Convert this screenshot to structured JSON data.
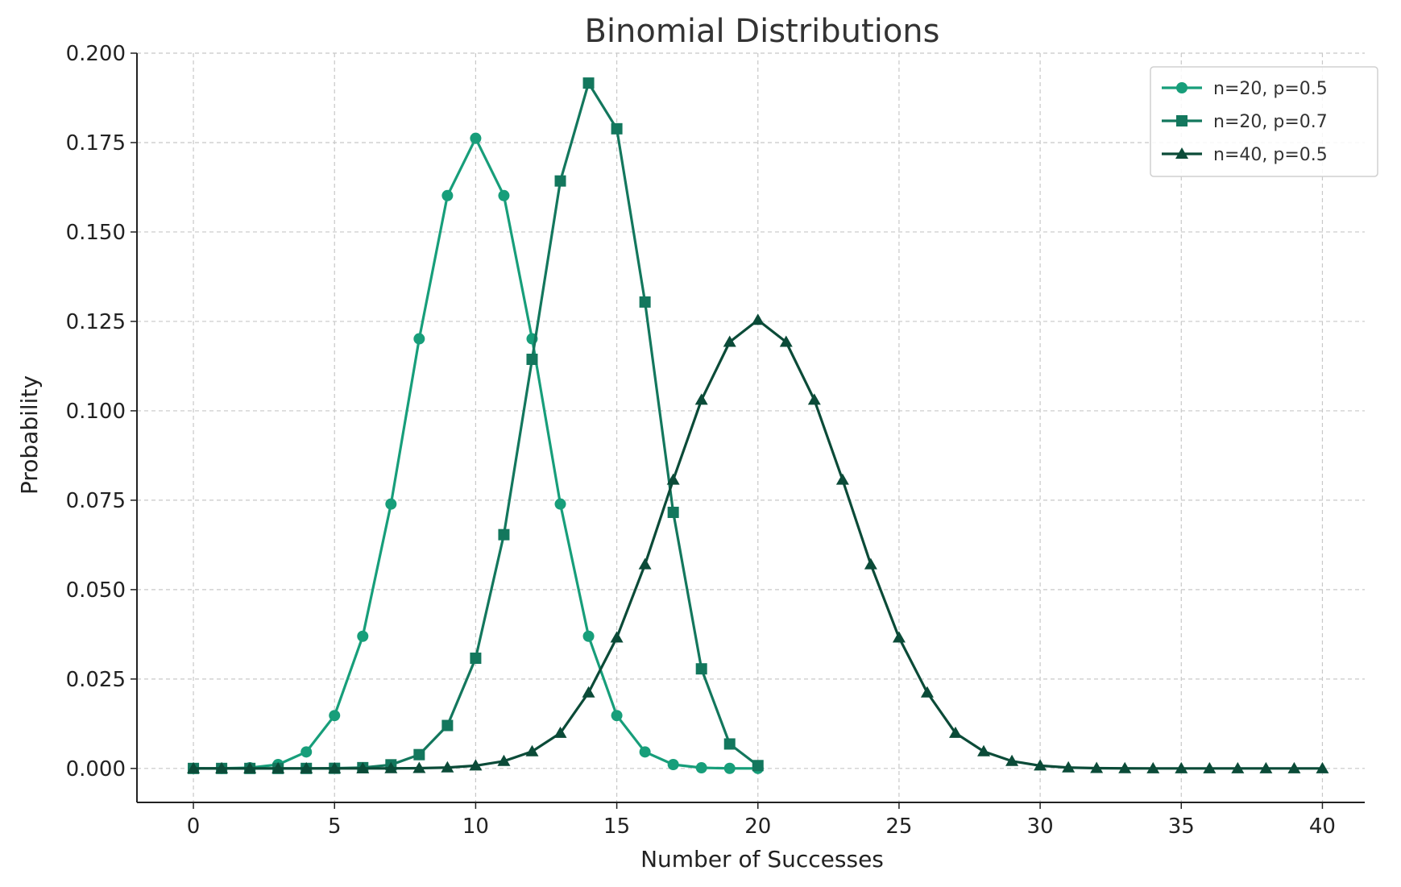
{
  "chart_data": {
    "type": "line",
    "title": "Binomial Distributions",
    "xlabel": "Number of Successes",
    "ylabel": "Probability",
    "xlim": [
      -2,
      41.5
    ],
    "ylim": [
      -0.0095,
      0.2
    ],
    "xticks": [
      0,
      5,
      10,
      15,
      20,
      25,
      30,
      35,
      40
    ],
    "yticks": [
      0.0,
      0.025,
      0.05,
      0.075,
      0.1,
      0.125,
      0.15,
      0.175,
      0.2
    ],
    "ytick_labels": [
      "0.000",
      "0.025",
      "0.050",
      "0.075",
      "0.100",
      "0.125",
      "0.150",
      "0.175",
      "0.200"
    ],
    "grid": true,
    "legend_position": "top-right",
    "series": [
      {
        "name": "n=20, p=0.5",
        "marker": "circle",
        "color": "#179e7a",
        "x": [
          0,
          1,
          2,
          3,
          4,
          5,
          6,
          7,
          8,
          9,
          10,
          11,
          12,
          13,
          14,
          15,
          16,
          17,
          18,
          19,
          20
        ],
        "values": [
          1e-06,
          1.9e-05,
          0.000181,
          0.001087,
          0.004621,
          0.014786,
          0.036964,
          0.073929,
          0.120134,
          0.160179,
          0.176197,
          0.160179,
          0.120134,
          0.073929,
          0.036964,
          0.014786,
          0.004621,
          0.001087,
          0.000181,
          1.9e-05,
          1e-06
        ]
      },
      {
        "name": "n=20, p=0.7",
        "marker": "square",
        "color": "#13775d",
        "x": [
          0,
          1,
          2,
          3,
          4,
          5,
          6,
          7,
          8,
          9,
          10,
          11,
          12,
          13,
          14,
          15,
          16,
          17,
          18,
          19,
          20
        ],
        "values": [
          0.0,
          0.0,
          0.0,
          0.0,
          5e-06,
          3.7e-05,
          0.000218,
          0.001018,
          0.003859,
          0.012007,
          0.030817,
          0.06537,
          0.114397,
          0.164262,
          0.191639,
          0.178863,
          0.130421,
          0.071604,
          0.027846,
          0.006839,
          0.000798
        ]
      },
      {
        "name": "n=40, p=0.5",
        "marker": "triangle",
        "color": "#0b4b38",
        "x": [
          0,
          1,
          2,
          3,
          4,
          5,
          6,
          7,
          8,
          9,
          10,
          11,
          12,
          13,
          14,
          15,
          16,
          17,
          18,
          19,
          20,
          21,
          22,
          23,
          24,
          25,
          26,
          27,
          28,
          29,
          30,
          31,
          32,
          33,
          34,
          35,
          36,
          37,
          38,
          39,
          40
        ],
        "values": [
          0.0,
          0.0,
          0.0,
          0.0,
          0.0,
          0.0,
          3e-06,
          1.7e-05,
          7e-05,
          0.00025,
          0.000772,
          0.002035,
          0.004748,
          0.009891,
          0.021195,
          0.036561,
          0.057025,
          0.080693,
          0.103039,
          0.119241,
          0.125371,
          0.119241,
          0.103039,
          0.080693,
          0.057025,
          0.036561,
          0.021195,
          0.009891,
          0.004748,
          0.002035,
          0.000772,
          0.00025,
          7e-05,
          1.7e-05,
          3e-06,
          0.0,
          0.0,
          0.0,
          0.0,
          0.0,
          0.0
        ]
      }
    ]
  }
}
